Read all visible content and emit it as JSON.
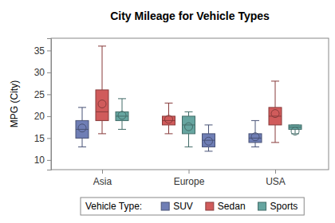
{
  "chart_data": {
    "type": "box",
    "title": "City Mileage for Vehicle Types",
    "y_label": "MPG (City)",
    "categories": [
      "Asia",
      "Europe",
      "USA"
    ],
    "group_order": [
      [
        "SUV",
        "Sedan",
        "Sports"
      ],
      [
        "Sedan",
        "Sports",
        "SUV"
      ],
      [
        "SUV",
        "Sedan",
        "Sports"
      ]
    ],
    "series": [
      {
        "name": "SUV",
        "color": "#6f7eb5",
        "values": [
          {
            "min": 13,
            "q1": 15,
            "median": 17,
            "q3": 19,
            "max": 22,
            "mean": 17.3
          },
          {
            "min": 12,
            "q1": 13,
            "median": 14.5,
            "q3": 16,
            "max": 18,
            "mean": 14.3
          },
          {
            "min": 13,
            "q1": 14,
            "median": 15,
            "q3": 16,
            "max": 19,
            "mean": 15.3
          }
        ]
      },
      {
        "name": "Sedan",
        "color": "#d05b5b",
        "values": [
          {
            "min": 16,
            "q1": 19,
            "median": 21,
            "q3": 26,
            "max": 36,
            "mean": 22.8
          },
          {
            "min": 16,
            "q1": 18,
            "median": 19,
            "q3": 20,
            "max": 23,
            "mean": 19.3
          },
          {
            "min": 14,
            "q1": 18,
            "median": 20,
            "q3": 22,
            "max": 28,
            "mean": 20.6
          }
        ]
      },
      {
        "name": "Sports",
        "color": "#66a5a0",
        "values": [
          {
            "min": 17,
            "q1": 19,
            "median": 20,
            "q3": 21,
            "max": 24,
            "mean": 20.2
          },
          {
            "min": 13,
            "q1": 16,
            "median": 18,
            "q3": 20,
            "max": 21,
            "mean": 17.6
          },
          {
            "min": 16,
            "q1": 17,
            "median": 17.5,
            "q3": 18,
            "max": 18,
            "mean": 16.6
          }
        ]
      }
    ],
    "ylim": [
      7.8,
      37.8
    ],
    "yticks": [
      10,
      15,
      20,
      25,
      30,
      35
    ],
    "legend_title": "Vehicle Type:",
    "legend": "bottom"
  }
}
